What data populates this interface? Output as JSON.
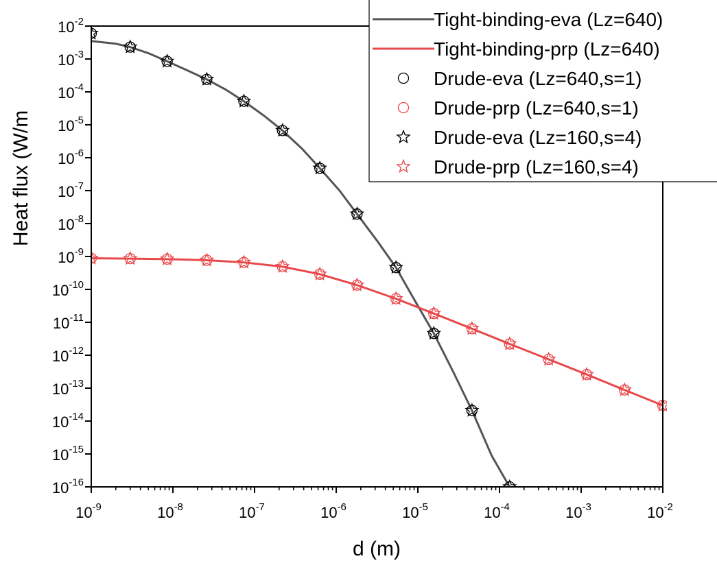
{
  "chart_data": {
    "type": "line",
    "xlabel": "d (m)",
    "ylabel": "Heat flux (W/m",
    "xscale": "log",
    "yscale": "log",
    "xlim": [
      1e-09,
      0.01
    ],
    "ylim": [
      1e-16,
      0.01
    ],
    "xticks": [
      {
        "base": "10",
        "exp": "-9",
        "value": 1e-09
      },
      {
        "base": "10",
        "exp": "-8",
        "value": 1e-08
      },
      {
        "base": "10",
        "exp": "-7",
        "value": 1e-07
      },
      {
        "base": "10",
        "exp": "-6",
        "value": 1e-06
      },
      {
        "base": "10",
        "exp": "-5",
        "value": 1e-05
      },
      {
        "base": "10",
        "exp": "-4",
        "value": 0.0001
      },
      {
        "base": "10",
        "exp": "-3",
        "value": 0.001
      },
      {
        "base": "10",
        "exp": "-2",
        "value": 0.01
      }
    ],
    "yticks": [
      {
        "base": "10",
        "exp": "-16",
        "value": 1e-16
      },
      {
        "base": "10",
        "exp": "-15",
        "value": 1e-15
      },
      {
        "base": "10",
        "exp": "-14",
        "value": 1e-14
      },
      {
        "base": "10",
        "exp": "-13",
        "value": 1e-13
      },
      {
        "base": "10",
        "exp": "-12",
        "value": 1e-12
      },
      {
        "base": "10",
        "exp": "-11",
        "value": 1e-11
      },
      {
        "base": "10",
        "exp": "-10",
        "value": 1e-10
      },
      {
        "base": "10",
        "exp": "-9",
        "value": 1e-09
      },
      {
        "base": "10",
        "exp": "-8",
        "value": 1e-08
      },
      {
        "base": "10",
        "exp": "-7",
        "value": 1e-07
      },
      {
        "base": "10",
        "exp": "-6",
        "value": 1e-06
      },
      {
        "base": "10",
        "exp": "-5",
        "value": 1e-05
      },
      {
        "base": "10",
        "exp": "-4",
        "value": 0.0001
      },
      {
        "base": "10",
        "exp": "-3",
        "value": 0.001
      },
      {
        "base": "10",
        "exp": "-2",
        "value": 0.01
      }
    ],
    "grid": false,
    "legend_position": "top-right",
    "series": [
      {
        "name": "Tight-binding-eva (Lz=640)",
        "kind": "line",
        "color": "#555555",
        "x": [
          1e-09,
          2e-09,
          3e-09,
          5e-09,
          8.5e-09,
          1.5e-08,
          2.6e-08,
          4.5e-08,
          7.4e-08,
          1.3e-07,
          2.2e-07,
          3.8e-07,
          6.3e-07,
          1.1e-06,
          1.8e-06,
          3.2e-06,
          5.4e-06,
          9e-06,
          1.57e-05,
          2.7e-05,
          4.6e-05,
          8e-05,
          0.000133
        ],
        "y": [
          0.0035,
          0.0029,
          0.0023,
          0.0015,
          0.00085,
          0.00045,
          0.00024,
          0.000115,
          5.2e-05,
          1.9e-05,
          6.7e-06,
          1.9e-06,
          4.8e-07,
          1e-07,
          1.95e-08,
          2.9e-09,
          4.6e-10,
          5e-11,
          4.6e-12,
          3.2e-13,
          2.1e-14,
          9e-16,
          1e-16
        ]
      },
      {
        "name": "Tight-binding-prp (Lz=640)",
        "kind": "line",
        "color": "#e8484a",
        "x": [
          1e-09,
          3e-09,
          8.5e-09,
          2.6e-08,
          7.4e-08,
          2.2e-07,
          6.3e-07,
          1.8e-06,
          5.4e-06,
          1.57e-05,
          4.6e-05,
          0.000133,
          0.0004,
          0.00117,
          0.0034,
          0.01
        ],
        "y": [
          8.8e-10,
          8.6e-10,
          8.3e-10,
          7.7e-10,
          6.6e-10,
          4.9e-10,
          2.9e-10,
          1.35e-10,
          5.2e-11,
          1.85e-11,
          6.4e-12,
          2.2e-12,
          7.5e-13,
          2.6e-13,
          8.8e-14,
          3e-14
        ]
      },
      {
        "name": "Drude-eva (Lz=640,s=1)",
        "kind": "circle",
        "color": "#000000",
        "x": [
          1e-09,
          3e-09,
          8.5e-09,
          2.6e-08,
          7.4e-08,
          2.2e-07,
          6.3e-07,
          1.8e-06,
          5.4e-06,
          1.57e-05,
          4.6e-05,
          0.000133
        ],
        "y": [
          0.006,
          0.0023,
          0.00085,
          0.00024,
          5.2e-05,
          6.7e-06,
          4.8e-07,
          1.95e-08,
          4.6e-10,
          4.6e-12,
          2.1e-14,
          1e-16
        ]
      },
      {
        "name": "Drude-prp (Lz=640,s=1)",
        "kind": "circle",
        "color": "#e8484a",
        "x": [
          1e-09,
          3e-09,
          8.5e-09,
          2.6e-08,
          7.4e-08,
          2.2e-07,
          6.3e-07,
          1.8e-06,
          5.4e-06,
          1.57e-05,
          4.6e-05,
          0.000133,
          0.0004,
          0.00117,
          0.0034,
          0.01
        ],
        "y": [
          8.8e-10,
          8.6e-10,
          8.3e-10,
          7.7e-10,
          6.6e-10,
          4.9e-10,
          2.9e-10,
          1.35e-10,
          5.2e-11,
          1.85e-11,
          6.4e-12,
          2.2e-12,
          7.5e-13,
          2.6e-13,
          8.8e-14,
          3e-14
        ]
      },
      {
        "name": "Drude-eva (Lz=160,s=4)",
        "kind": "star",
        "color": "#000000",
        "x": [
          1e-09,
          3e-09,
          8.5e-09,
          2.6e-08,
          7.4e-08,
          2.2e-07,
          6.3e-07,
          1.8e-06,
          5.4e-06,
          1.57e-05,
          4.6e-05,
          0.000133
        ],
        "y": [
          0.006,
          0.0023,
          0.00085,
          0.00024,
          5.2e-05,
          6.7e-06,
          4.8e-07,
          1.95e-08,
          4.6e-10,
          4.6e-12,
          2.1e-14,
          1e-16
        ]
      },
      {
        "name": "Drude-prp (Lz=160,s=4)",
        "kind": "star",
        "color": "#e8484a",
        "x": [
          1e-09,
          3e-09,
          8.5e-09,
          2.6e-08,
          7.4e-08,
          2.2e-07,
          6.3e-07,
          1.8e-06,
          5.4e-06,
          1.57e-05,
          4.6e-05,
          0.000133,
          0.0004,
          0.00117,
          0.0034,
          0.01
        ],
        "y": [
          8.8e-10,
          8.6e-10,
          8.3e-10,
          7.7e-10,
          6.6e-10,
          4.9e-10,
          2.9e-10,
          1.35e-10,
          5.2e-11,
          1.85e-11,
          6.4e-12,
          2.2e-12,
          7.5e-13,
          2.6e-13,
          8.8e-14,
          3e-14
        ]
      }
    ]
  }
}
